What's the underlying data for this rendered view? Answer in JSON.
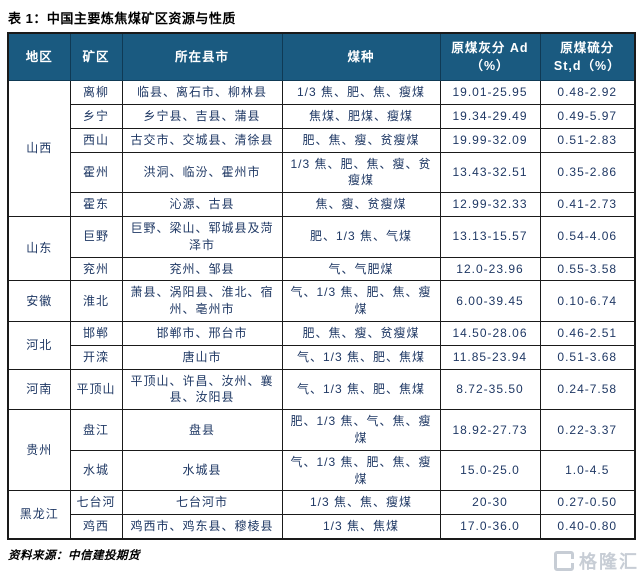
{
  "title": "表 1：中国主要炼焦煤矿区资源与性质",
  "table": {
    "headers": [
      "地区",
      "矿区",
      "所在县市",
      "煤种",
      "原煤灰分 Ad\n（%）",
      "原煤硫分\nSt,d（%）"
    ],
    "regions": [
      {
        "region": "山西",
        "rows": [
          {
            "mine": "离柳",
            "counties": "临县、离石市、柳林县",
            "coal_types": "1/3 焦、肥、焦、瘦煤",
            "ash": "19.01-25.95",
            "sulfur": "0.48-2.92"
          },
          {
            "mine": "乡宁",
            "counties": "乡宁县、吉县、蒲县",
            "coal_types": "焦煤、肥煤、瘦煤",
            "ash": "19.34-29.49",
            "sulfur": "0.49-5.97"
          },
          {
            "mine": "西山",
            "counties": "古交市、交城县、清徐县",
            "coal_types": "肥、焦、瘦、贫瘦煤",
            "ash": "19.99-32.09",
            "sulfur": "0.51-2.83"
          },
          {
            "mine": "霍州",
            "counties": "洪洞、临汾、霍州市",
            "coal_types": "1/3 焦、肥、焦、瘦、贫瘦煤",
            "ash": "13.43-32.51",
            "sulfur": "0.35-2.86"
          },
          {
            "mine": "霍东",
            "counties": "沁源、古县",
            "coal_types": "焦、瘦、贫瘦煤",
            "ash": "12.99-32.33",
            "sulfur": "0.41-2.73"
          }
        ]
      },
      {
        "region": "山东",
        "rows": [
          {
            "mine": "巨野",
            "counties": "巨野、梁山、郓城县及菏泽市",
            "coal_types": "肥、1/3 焦、气煤",
            "ash": "13.13-15.57",
            "sulfur": "0.54-4.06"
          },
          {
            "mine": "兖州",
            "counties": "兖州、邹县",
            "coal_types": "气、气肥煤",
            "ash": "12.0-23.96",
            "sulfur": "0.55-3.58"
          }
        ]
      },
      {
        "region": "安徽",
        "rows": [
          {
            "mine": "淮北",
            "counties": "萧县、涡阳县、淮北、宿州、亳州市",
            "coal_types": "气、1/3 焦、肥、焦、瘦煤",
            "ash": "6.00-39.45",
            "sulfur": "0.10-6.74"
          }
        ]
      },
      {
        "region": "河北",
        "rows": [
          {
            "mine": "邯郸",
            "counties": "邯郸市、邢台市",
            "coal_types": "肥、焦、瘦、贫瘦煤",
            "ash": "14.50-28.06",
            "sulfur": "0.46-2.51"
          },
          {
            "mine": "开滦",
            "counties": "唐山市",
            "coal_types": "气、1/3 焦、肥、焦煤",
            "ash": "11.85-23.94",
            "sulfur": "0.51-3.68"
          }
        ]
      },
      {
        "region": "河南",
        "rows": [
          {
            "mine": "平顶山",
            "counties": "平顶山、许昌、汝州、襄县、汝阳县",
            "coal_types": "气、1/3 焦、肥、焦煤",
            "ash": "8.72-35.50",
            "sulfur": "0.24-7.58"
          }
        ]
      },
      {
        "region": "贵州",
        "rows": [
          {
            "mine": "盘江",
            "counties": "盘县",
            "coal_types": "肥、1/3 焦、气、焦、瘦煤",
            "ash": "18.92-27.73",
            "sulfur": "0.22-3.37"
          },
          {
            "mine": "水城",
            "counties": "水城县",
            "coal_types": "气、1/3 焦、肥、焦、瘦煤",
            "ash": "15.0-25.0",
            "sulfur": "1.0-4.5"
          }
        ]
      },
      {
        "region": "黑龙江",
        "rows": [
          {
            "mine": "七台河",
            "counties": "七台河市",
            "coal_types": "1/3 焦、焦、瘦煤",
            "ash": "20-30",
            "sulfur": "0.27-0.50"
          },
          {
            "mine": "鸡西",
            "counties": "鸡西市、鸡东县、穆棱县",
            "coal_types": "1/3 焦、焦煤",
            "ash": "17.0-36.0",
            "sulfur": "0.40-0.80"
          }
        ]
      }
    ]
  },
  "source": "资料来源：中信建投期货",
  "watermark": {
    "text": "格隆汇"
  },
  "colors": {
    "header_bg": "#1A5A80",
    "header_text": "#FFFFFF",
    "body_text": "#1F3864",
    "border": "#1A1A1A",
    "watermark": "#C7CDD5"
  }
}
